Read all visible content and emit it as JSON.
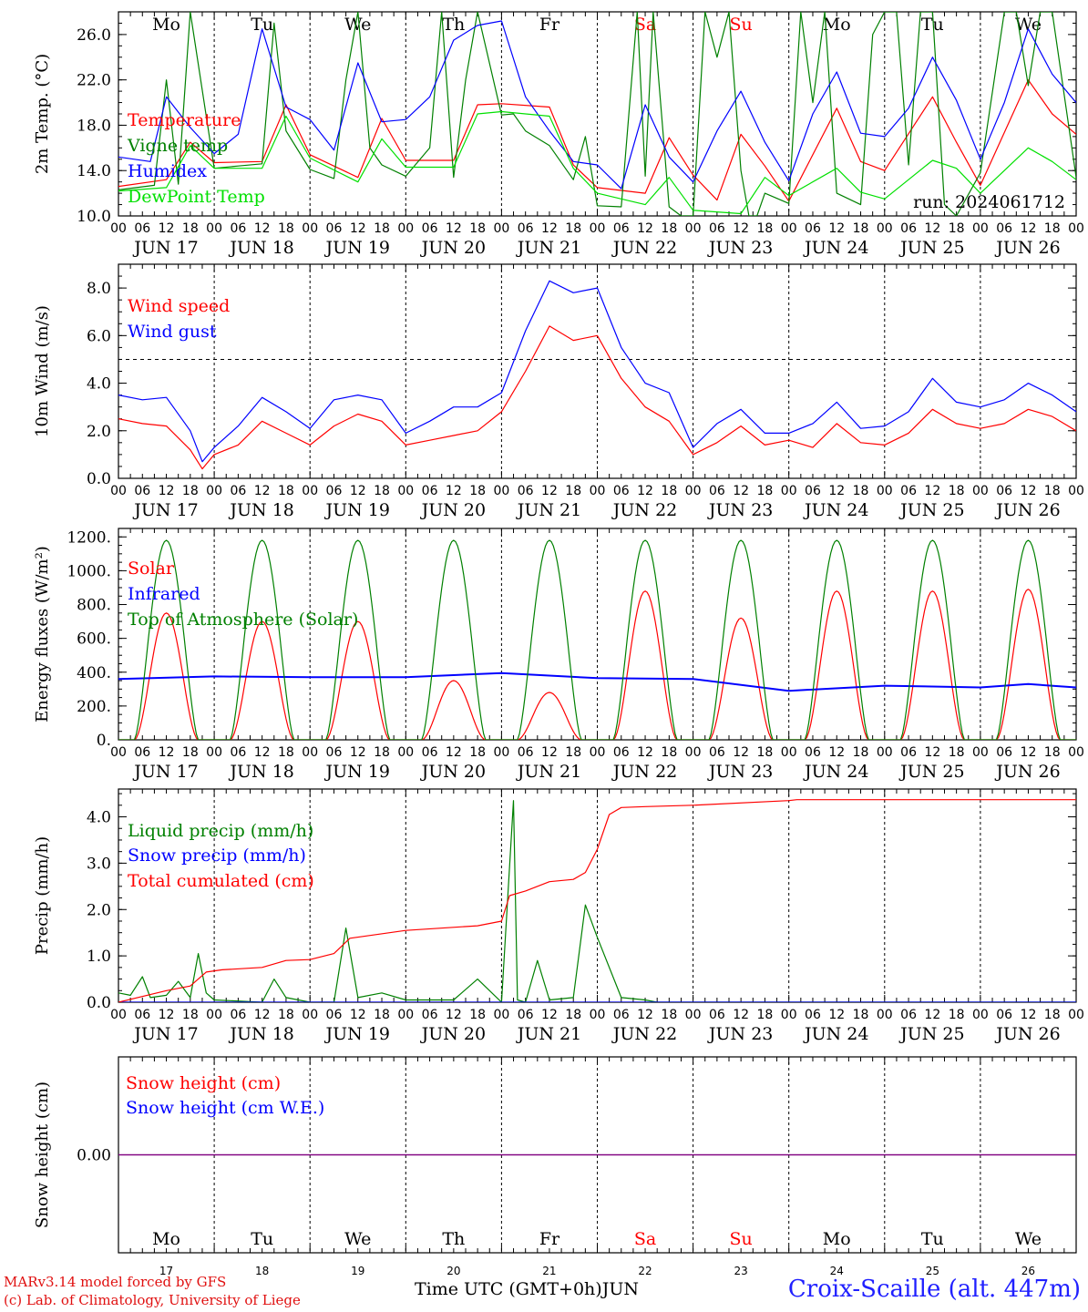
{
  "run_label": "run: 2024061712",
  "days": [
    {
      "abbr": "Mo",
      "num": "17",
      "weekend": false
    },
    {
      "abbr": "Tu",
      "num": "18",
      "weekend": false
    },
    {
      "abbr": "We",
      "num": "19",
      "weekend": false
    },
    {
      "abbr": "Th",
      "num": "20",
      "weekend": false
    },
    {
      "abbr": "Fr",
      "num": "21",
      "weekend": false
    },
    {
      "abbr": "Sa",
      "num": "22",
      "weekend": true
    },
    {
      "abbr": "Su",
      "num": "23",
      "weekend": true
    },
    {
      "abbr": "Mo",
      "num": "24",
      "weekend": false
    },
    {
      "abbr": "Tu",
      "num": "25",
      "weekend": false
    },
    {
      "abbr": "We",
      "num": "26",
      "weekend": false
    }
  ],
  "date_labels": [
    "JUN 17",
    "JUN 18",
    "JUN 19",
    "JUN 20",
    "JUN 21",
    "JUN 22",
    "JUN 23",
    "JUN 24",
    "JUN 25",
    "JUN 26"
  ],
  "hour_labels": [
    "00",
    "06",
    "12",
    "18"
  ],
  "month_label": "JUN",
  "footer": {
    "credit_line1": "MARv3.14 model forced by GFS",
    "credit_line2": "(c) Lab. of Climatology, University of Liege",
    "x_title": "Time UTC (GMT+0h)",
    "station": "Croix-Scaille (alt. 447m)"
  },
  "colors": {
    "red": "#ff0000",
    "green": "#008000",
    "blue": "#0000ff",
    "lightgreen": "#00e000",
    "purple": "#800080",
    "weekend": "#ff0000"
  },
  "chart_data": [
    {
      "type": "line",
      "ylabel": "2m Temp. (°C)",
      "ylim": [
        10,
        28
      ],
      "yticks": [
        10,
        14,
        18,
        22,
        26
      ],
      "ytick_labels": [
        "10.0",
        "14.0",
        "18.0",
        "22.0",
        "26.0"
      ],
      "x_unit": "hours since 2024-06-17 00 UTC",
      "series": [
        {
          "name": "Temperature",
          "color": "red",
          "x": [
            0,
            12,
            18,
            24,
            36,
            42,
            48,
            60,
            66,
            72,
            84,
            90,
            96,
            108,
            114,
            120,
            132,
            138,
            144,
            150,
            156,
            162,
            168,
            180,
            186,
            192,
            204,
            210,
            216,
            228,
            234,
            240
          ],
          "values": [
            12.6,
            13.2,
            16.5,
            14.7,
            14.8,
            19.8,
            15.4,
            13.4,
            18.6,
            14.9,
            14.9,
            19.8,
            19.9,
            19.6,
            14.5,
            12.5,
            12.0,
            16.9,
            13.6,
            11.4,
            17.2,
            14.4,
            11.3,
            19.5,
            14.8,
            14.0,
            20.5,
            16.5,
            12.7,
            22.0,
            19.0,
            17.2
          ]
        },
        {
          "name": "Vigne temp",
          "color": "green",
          "x": [
            0,
            9,
            12,
            15,
            18,
            24,
            30,
            36,
            39,
            42,
            48,
            54,
            57,
            60,
            63,
            66,
            72,
            78,
            81,
            84,
            87,
            90,
            96,
            99,
            102,
            108,
            114,
            117,
            120,
            126,
            130,
            132,
            134,
            138,
            141,
            144,
            147,
            150,
            153,
            156,
            158,
            160,
            162,
            168,
            171,
            174,
            177,
            180,
            186,
            189,
            192,
            195,
            198,
            201,
            204,
            207,
            210,
            216,
            222,
            225,
            228,
            231,
            234,
            240
          ],
          "values": [
            12.3,
            12.7,
            22,
            12.8,
            28,
            14.2,
            14.4,
            14.6,
            27,
            17.5,
            14.1,
            13.3,
            22,
            28,
            16,
            14.5,
            13.5,
            16,
            28,
            13.4,
            22,
            28,
            18.9,
            19,
            17.5,
            16.2,
            13.2,
            17,
            10.9,
            10.8,
            28,
            13.5,
            28,
            10.8,
            10,
            10,
            28,
            24,
            28,
            14.0,
            10,
            10,
            12,
            11.1,
            28,
            20,
            28,
            12.0,
            11.0,
            26,
            28,
            28,
            14.5,
            28,
            28,
            11,
            10,
            13.8,
            28,
            28,
            21.5,
            28,
            28,
            13.4
          ]
        },
        {
          "name": "Humidex",
          "color": "blue",
          "x": [
            0,
            8,
            12,
            18,
            24,
            30,
            36,
            42,
            48,
            54,
            60,
            66,
            72,
            78,
            84,
            90,
            96,
            102,
            108,
            114,
            120,
            126,
            132,
            138,
            144,
            150,
            156,
            162,
            168,
            174,
            180,
            186,
            192,
            198,
            204,
            210,
            216,
            222,
            228,
            234,
            240
          ],
          "values": [
            15.2,
            14.8,
            20.5,
            17.8,
            15.5,
            17.2,
            26.5,
            19.6,
            18.5,
            15.8,
            23.5,
            18.3,
            18.5,
            20.5,
            25.5,
            26.8,
            27.2,
            20.5,
            17.5,
            14.8,
            14.5,
            12.4,
            19.8,
            15.2,
            13.0,
            17.5,
            21.0,
            16.5,
            13.1,
            19.0,
            22.7,
            17.3,
            17.0,
            19.5,
            24.0,
            20.2,
            15.0,
            20.0,
            26.5,
            22.5,
            20.0
          ]
        },
        {
          "name": "DewPoint Temp",
          "color": "lightgreen",
          "x": [
            0,
            12,
            18,
            24,
            36,
            42,
            48,
            60,
            66,
            72,
            84,
            90,
            96,
            108,
            114,
            120,
            132,
            138,
            144,
            156,
            162,
            168,
            180,
            186,
            192,
            204,
            210,
            216,
            228,
            234,
            240
          ],
          "values": [
            12.2,
            12.5,
            16.2,
            14.2,
            14.2,
            18.8,
            15.1,
            13.0,
            16.8,
            14.3,
            14.3,
            19.0,
            19.2,
            18.8,
            14.2,
            12.0,
            11.0,
            13.4,
            10.5,
            10.2,
            13.4,
            11.8,
            14.2,
            12.1,
            11.5,
            14.9,
            14.2,
            12.0,
            16.0,
            14.8,
            13.2
          ]
        }
      ]
    },
    {
      "type": "line",
      "ylabel": "10m Wind (m/s)",
      "ylim": [
        0,
        9
      ],
      "yticks": [
        0,
        2,
        4,
        6,
        8
      ],
      "ytick_labels": [
        "0.0",
        "2.0",
        "4.0",
        "6.0",
        "8.0"
      ],
      "ref_line": 5,
      "series": [
        {
          "name": "Wind speed",
          "color": "red",
          "x": [
            0,
            6,
            12,
            18,
            21,
            24,
            30,
            36,
            42,
            48,
            54,
            60,
            66,
            72,
            78,
            84,
            90,
            96,
            102,
            108,
            114,
            120,
            126,
            132,
            138,
            144,
            150,
            156,
            162,
            168,
            174,
            180,
            186,
            192,
            198,
            204,
            210,
            216,
            222,
            228,
            234,
            240
          ],
          "values": [
            2.5,
            2.3,
            2.2,
            1.2,
            0.4,
            1.0,
            1.4,
            2.4,
            1.9,
            1.4,
            2.2,
            2.7,
            2.4,
            1.4,
            1.6,
            1.8,
            2.0,
            2.8,
            4.5,
            6.4,
            5.8,
            6.0,
            4.2,
            3.0,
            2.4,
            1.0,
            1.5,
            2.2,
            1.4,
            1.6,
            1.3,
            2.3,
            1.5,
            1.4,
            1.9,
            2.9,
            2.3,
            2.1,
            2.3,
            2.9,
            2.6,
            2.0
          ]
        },
        {
          "name": "Wind gust",
          "color": "blue",
          "x": [
            0,
            6,
            12,
            18,
            21,
            24,
            30,
            36,
            42,
            48,
            54,
            60,
            66,
            72,
            78,
            84,
            90,
            96,
            102,
            108,
            114,
            120,
            126,
            132,
            138,
            144,
            150,
            156,
            162,
            168,
            174,
            180,
            186,
            192,
            198,
            204,
            210,
            216,
            222,
            228,
            234,
            240
          ],
          "values": [
            3.5,
            3.3,
            3.4,
            2.0,
            0.7,
            1.3,
            2.2,
            3.4,
            2.8,
            2.1,
            3.3,
            3.5,
            3.3,
            1.9,
            2.4,
            3.0,
            3.0,
            3.6,
            6.2,
            8.3,
            7.8,
            8.0,
            5.5,
            4.0,
            3.6,
            1.3,
            2.3,
            2.9,
            1.9,
            1.9,
            2.3,
            3.2,
            2.1,
            2.2,
            2.8,
            4.2,
            3.2,
            3.0,
            3.3,
            4.0,
            3.5,
            2.8
          ]
        }
      ]
    },
    {
      "type": "line",
      "ylabel": "Energy fluxes (W/m²)",
      "ylim": [
        0,
        1250
      ],
      "yticks": [
        0,
        200,
        400,
        600,
        800,
        1000,
        1200
      ],
      "ytick_labels": [
        "0.",
        "200.",
        "400.",
        "600.",
        "800.",
        "1000.",
        "1200."
      ],
      "series": [
        {
          "name": "Solar",
          "color": "red",
          "daily_peak": [
            750,
            700,
            700,
            350,
            280,
            880,
            720,
            880,
            880,
            890
          ]
        },
        {
          "name": "Infrared",
          "color": "blue",
          "x": [
            0,
            24,
            48,
            72,
            96,
            120,
            144,
            168,
            192,
            216,
            228,
            240
          ],
          "values": [
            360,
            375,
            370,
            370,
            395,
            365,
            360,
            290,
            320,
            310,
            330,
            310
          ]
        },
        {
          "name": "Top of Atmosphere (Solar)",
          "color": "green",
          "daily_peak": [
            1180,
            1180,
            1180,
            1180,
            1180,
            1180,
            1180,
            1180,
            1180,
            1180
          ]
        }
      ]
    },
    {
      "type": "line",
      "ylabel": "Precip (mm/h)",
      "ylim": [
        0,
        4.6
      ],
      "yticks": [
        0,
        1,
        2,
        3,
        4
      ],
      "ytick_labels": [
        "0.0",
        "1.0",
        "2.0",
        "3.0",
        "4.0"
      ],
      "series": [
        {
          "name": "Liquid precip (mm/h)",
          "color": "green",
          "x": [
            0,
            3,
            6,
            8,
            12,
            15,
            18,
            20,
            22,
            24,
            36,
            39,
            42,
            48,
            54,
            57,
            60,
            66,
            72,
            84,
            90,
            96,
            99,
            100,
            102,
            105,
            108,
            114,
            117,
            120,
            126,
            132,
            135,
            138,
            144,
            168,
            240
          ],
          "values": [
            0.2,
            0.15,
            0.55,
            0.1,
            0.15,
            0.45,
            0.1,
            1.05,
            0.2,
            0.05,
            0.0,
            0.5,
            0.1,
            0.0,
            0.0,
            1.6,
            0.1,
            0.2,
            0.05,
            0.05,
            0.5,
            0.0,
            4.35,
            0.05,
            0.0,
            0.9,
            0.05,
            0.1,
            2.1,
            1.4,
            0.1,
            0.05,
            0.0,
            0.0,
            0.0,
            0.0,
            0.0
          ]
        },
        {
          "name": "Snow precip (mm/h)",
          "color": "blue",
          "x": [
            0,
            240
          ],
          "values": [
            0,
            0
          ]
        },
        {
          "name": "Total cumulated (cm)",
          "color": "red",
          "x": [
            0,
            12,
            18,
            22,
            26,
            36,
            42,
            48,
            54,
            58,
            72,
            90,
            96,
            98,
            102,
            108,
            114,
            117,
            120,
            123,
            126,
            132,
            144,
            168,
            170,
            240
          ],
          "values": [
            0.0,
            0.25,
            0.35,
            0.65,
            0.7,
            0.75,
            0.9,
            0.92,
            1.05,
            1.38,
            1.55,
            1.65,
            1.75,
            2.3,
            2.4,
            2.6,
            2.65,
            2.8,
            3.3,
            4.05,
            4.2,
            4.22,
            4.25,
            4.35,
            4.37,
            4.37
          ]
        }
      ]
    },
    {
      "type": "line",
      "ylabel": "Snow height (cm)",
      "yticks": [
        0
      ],
      "ytick_labels": [
        "0.00"
      ],
      "series": [
        {
          "name": "Snow height (cm)",
          "color": "red",
          "x": [
            0,
            240
          ],
          "values": [
            0,
            0
          ]
        },
        {
          "name": "Snow height (cm W.E.)",
          "color": "blue",
          "x": [
            0,
            240
          ],
          "values": [
            0,
            0
          ]
        }
      ]
    }
  ]
}
